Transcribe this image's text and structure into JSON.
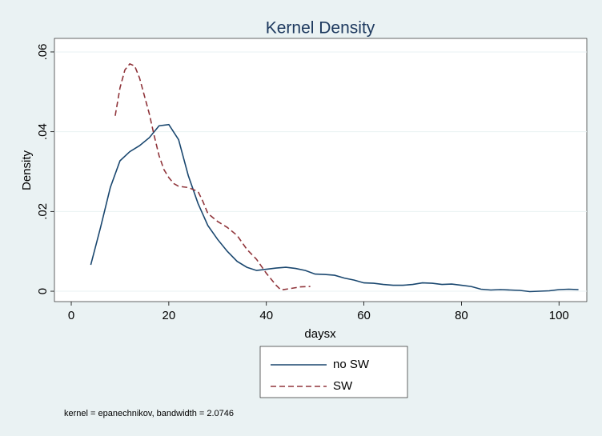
{
  "chart_data": {
    "type": "line",
    "title": "Kernel Density",
    "xlabel": "daysx",
    "ylabel": "Density",
    "note": "kernel = epanechnikov, bandwidth = 2.0746",
    "xlim": [
      -3.45,
      105.7
    ],
    "xticks": [
      0,
      20,
      40,
      60,
      80,
      100
    ],
    "ylim": [
      -0.0026,
      0.0634
    ],
    "yticks": [
      0,
      {
        "value": 0.02,
        "label": ".02"
      },
      {
        "value": 0.04,
        "label": ".04"
      },
      {
        "value": 0.06,
        "label": ".06"
      }
    ],
    "grid": true,
    "legend": "bottom",
    "series": [
      {
        "name": "no SW",
        "color": "#1a476f",
        "line_style": "solid",
        "x": [
          4,
          6,
          8,
          10,
          12,
          14,
          16,
          18,
          20,
          22,
          24,
          26,
          28,
          30,
          32,
          34,
          36,
          38,
          40,
          42,
          44,
          46,
          48,
          50,
          52,
          54,
          56,
          58,
          60,
          62,
          64,
          66,
          68,
          70,
          72,
          74,
          76,
          78,
          80,
          82,
          84,
          86,
          88,
          90,
          92,
          94,
          96,
          98,
          100,
          102,
          104
        ],
        "values": [
          0.0066,
          0.016,
          0.026,
          0.0327,
          0.035,
          0.0365,
          0.0385,
          0.0415,
          0.0418,
          0.038,
          0.029,
          0.022,
          0.0165,
          0.013,
          0.01,
          0.0075,
          0.006,
          0.0052,
          0.0055,
          0.0058,
          0.006,
          0.0057,
          0.0052,
          0.0043,
          0.0042,
          0.004,
          0.0033,
          0.0028,
          0.0021,
          0.002,
          0.0017,
          0.0015,
          0.0015,
          0.0017,
          0.0021,
          0.002,
          0.0017,
          0.0018,
          0.0015,
          0.0012,
          0.0005,
          0.0003,
          0.0004,
          0.0003,
          0.0002,
          -0.0001,
          0,
          0.0001,
          0.0004,
          0.0005,
          0.0004
        ]
      },
      {
        "name": "SW",
        "color": "#90353b",
        "line_style": "dashed",
        "x": [
          9,
          10,
          11,
          12,
          13,
          14,
          15,
          16,
          17,
          18,
          19,
          20,
          21,
          22,
          24,
          26,
          27,
          28,
          30,
          32,
          34,
          36,
          38,
          40,
          42,
          43,
          45,
          47,
          49
        ],
        "values": [
          0.044,
          0.051,
          0.0555,
          0.057,
          0.0565,
          0.0535,
          0.049,
          0.0445,
          0.039,
          0.034,
          0.0305,
          0.0285,
          0.027,
          0.0263,
          0.026,
          0.025,
          0.0225,
          0.0195,
          0.0175,
          0.016,
          0.014,
          0.0105,
          0.008,
          0.0045,
          0.0015,
          0.0003,
          0.0007,
          0.0011,
          0.0012
        ]
      }
    ]
  }
}
